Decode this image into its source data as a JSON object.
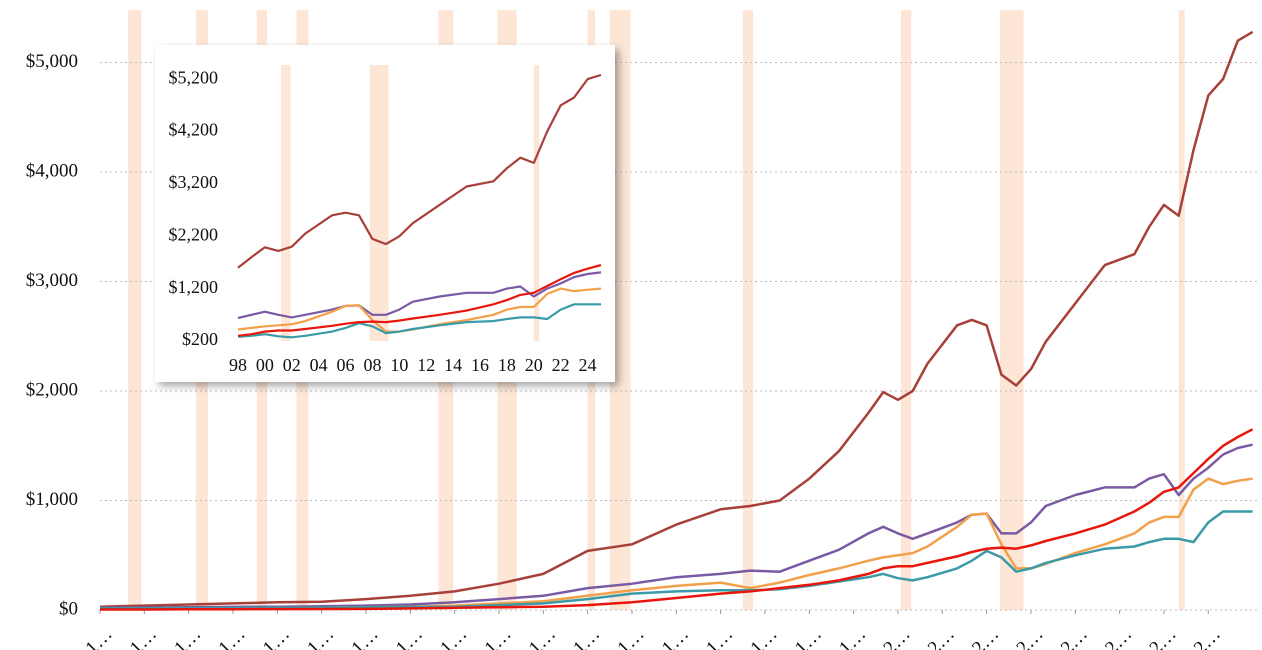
{
  "chart_data": [
    {
      "type": "line",
      "x": [
        1947,
        1950,
        1953,
        1956,
        1959,
        1962,
        1965,
        1968,
        1971,
        1974,
        1977,
        1980,
        1983,
        1986,
        1989,
        1991,
        1993,
        1995,
        1997,
        1999,
        2000,
        2001,
        2002,
        2003,
        2005,
        2006,
        2007,
        2008,
        2009,
        2010,
        2011,
        2013,
        2015,
        2017,
        2018,
        2019,
        2020,
        2021,
        2022,
        2023,
        2024,
        2025
      ],
      "series": [
        {
          "color": "#a8403a",
          "values": [
            30,
            40,
            50,
            60,
            70,
            75,
            100,
            130,
            170,
            240,
            330,
            540,
            600,
            780,
            920,
            950,
            1000,
            1200,
            1450,
            1800,
            1990,
            1920,
            2000,
            2250,
            2600,
            2650,
            2600,
            2150,
            2050,
            2200,
            2450,
            2800,
            3150,
            3250,
            3500,
            3700,
            3600,
            4200,
            4700,
            4850,
            5200,
            5280
          ]
        },
        {
          "color": "#7a5aa4",
          "values": [
            20,
            22,
            25,
            28,
            30,
            35,
            40,
            50,
            70,
            100,
            130,
            200,
            240,
            300,
            330,
            360,
            350,
            450,
            550,
            700,
            760,
            700,
            650,
            700,
            800,
            870,
            880,
            700,
            700,
            800,
            950,
            1050,
            1120,
            1120,
            1200,
            1240,
            1050,
            1200,
            1300,
            1420,
            1480,
            1510
          ]
        },
        {
          "color": "#f2a04a",
          "values": [
            10,
            10,
            12,
            14,
            16,
            20,
            25,
            30,
            40,
            60,
            80,
            130,
            180,
            220,
            250,
            200,
            250,
            320,
            380,
            450,
            480,
            500,
            520,
            580,
            760,
            870,
            880,
            600,
            380,
            380,
            420,
            520,
            600,
            700,
            800,
            850,
            850,
            1100,
            1200,
            1150,
            1180,
            1200
          ]
        },
        {
          "color": "#3a9aa8",
          "values": [
            15,
            15,
            16,
            18,
            20,
            22,
            25,
            28,
            30,
            45,
            60,
            100,
            150,
            170,
            180,
            180,
            190,
            220,
            260,
            300,
            330,
            290,
            270,
            300,
            380,
            450,
            540,
            480,
            350,
            380,
            430,
            500,
            560,
            580,
            620,
            650,
            650,
            620,
            800,
            900,
            900,
            900
          ]
        },
        {
          "color": "#e8160c",
          "values": [
            5,
            5,
            6,
            7,
            8,
            9,
            10,
            15,
            20,
            25,
            30,
            45,
            70,
            110,
            150,
            170,
            200,
            230,
            270,
            330,
            380,
            400,
            400,
            430,
            490,
            530,
            560,
            570,
            560,
            590,
            630,
            700,
            780,
            900,
            980,
            1080,
            1120,
            1250,
            1380,
            1500,
            1580,
            1650
          ]
        }
      ],
      "xlim": [
        1947,
        2025.5
      ],
      "xticks": [
        {
          "value": 1947,
          "label": "1…"
        },
        {
          "value": 1950,
          "label": "1…"
        },
        {
          "value": 1953,
          "label": "1…"
        },
        {
          "value": 1956,
          "label": "1…"
        },
        {
          "value": 1959,
          "label": "1…"
        },
        {
          "value": 1962,
          "label": "1…"
        },
        {
          "value": 1965,
          "label": "1…"
        },
        {
          "value": 1968,
          "label": "1…"
        },
        {
          "value": 1971,
          "label": "1…"
        },
        {
          "value": 1974,
          "label": "1…"
        },
        {
          "value": 1977,
          "label": "1…"
        },
        {
          "value": 1980,
          "label": "1…"
        },
        {
          "value": 1983,
          "label": "1…"
        },
        {
          "value": 1986,
          "label": "1…"
        },
        {
          "value": 1989,
          "label": "1…"
        },
        {
          "value": 1992,
          "label": "1…"
        },
        {
          "value": 1995,
          "label": "1…"
        },
        {
          "value": 1998,
          "label": "1…"
        },
        {
          "value": 2001,
          "label": "2…"
        },
        {
          "value": 2004,
          "label": "2…"
        },
        {
          "value": 2007,
          "label": "2…"
        },
        {
          "value": 2010,
          "label": "2…"
        },
        {
          "value": 2013,
          "label": "2…"
        },
        {
          "value": 2016,
          "label": "2…"
        },
        {
          "value": 2019,
          "label": "2…"
        },
        {
          "value": 2022,
          "label": "2…"
        }
      ],
      "ylim": [
        0,
        5480
      ],
      "yticks": [
        {
          "value": 0,
          "label": "$0"
        },
        {
          "value": 1000,
          "label": "$1,000"
        },
        {
          "value": 2000,
          "label": "$2,000"
        },
        {
          "value": 3000,
          "label": "$3,000"
        },
        {
          "value": 4000,
          "label": "$4,000"
        },
        {
          "value": 5000,
          "label": "$5,000"
        }
      ],
      "shaded_ranges": [
        [
          1948.9,
          1949.8
        ],
        [
          1953.5,
          1954.3
        ],
        [
          1957.6,
          1958.3
        ],
        [
          1960.3,
          1961.1
        ],
        [
          1969.9,
          1970.9
        ],
        [
          1973.9,
          1975.2
        ],
        [
          1980.0,
          1980.5
        ],
        [
          1981.5,
          1982.9
        ],
        [
          1990.5,
          1991.2
        ],
        [
          2001.2,
          2001.9
        ],
        [
          2007.9,
          2009.5
        ],
        [
          2020.0,
          2020.4
        ]
      ],
      "shade_color": "#fde6d6",
      "grid": true
    },
    {
      "type": "line",
      "x": [
        1998,
        1999,
        2000,
        2001,
        2002,
        2003,
        2005,
        2006,
        2007,
        2008,
        2009,
        2010,
        2011,
        2013,
        2015,
        2017,
        2018,
        2019,
        2020,
        2021,
        2022,
        2023,
        2024,
        2025
      ],
      "series": [
        {
          "color": "#a8403a",
          "values": [
            1600,
            1800,
            1990,
            1920,
            2000,
            2250,
            2600,
            2650,
            2600,
            2150,
            2050,
            2200,
            2450,
            2800,
            3150,
            3250,
            3500,
            3700,
            3600,
            4200,
            4700,
            4850,
            5200,
            5280
          ]
        },
        {
          "color": "#7a5aa4",
          "values": [
            640,
            700,
            760,
            700,
            650,
            700,
            800,
            870,
            880,
            700,
            700,
            800,
            950,
            1050,
            1120,
            1120,
            1200,
            1240,
            1050,
            1200,
            1300,
            1420,
            1480,
            1510
          ]
        },
        {
          "color": "#f2a04a",
          "values": [
            420,
            450,
            480,
            500,
            520,
            580,
            760,
            870,
            880,
            600,
            380,
            380,
            420,
            520,
            600,
            700,
            800,
            850,
            850,
            1100,
            1200,
            1150,
            1180,
            1200
          ]
        },
        {
          "color": "#3a9aa8",
          "values": [
            280,
            300,
            330,
            290,
            270,
            300,
            380,
            450,
            540,
            480,
            350,
            380,
            430,
            500,
            560,
            580,
            620,
            650,
            650,
            620,
            800,
            900,
            900,
            900
          ]
        },
        {
          "color": "#e8160c",
          "values": [
            300,
            330,
            380,
            400,
            400,
            430,
            490,
            530,
            560,
            570,
            560,
            590,
            630,
            700,
            780,
            900,
            980,
            1080,
            1120,
            1250,
            1380,
            1500,
            1580,
            1650
          ]
        }
      ],
      "xlim": [
        1998,
        2025
      ],
      "xticks": [
        {
          "value": 1998,
          "label": "98"
        },
        {
          "value": 2000,
          "label": "00"
        },
        {
          "value": 2002,
          "label": "02"
        },
        {
          "value": 2004,
          "label": "04"
        },
        {
          "value": 2006,
          "label": "06"
        },
        {
          "value": 2008,
          "label": "08"
        },
        {
          "value": 2010,
          "label": "10"
        },
        {
          "value": 2012,
          "label": "12"
        },
        {
          "value": 2014,
          "label": "14"
        },
        {
          "value": 2016,
          "label": "16"
        },
        {
          "value": 2018,
          "label": "18"
        },
        {
          "value": 2020,
          "label": "20"
        },
        {
          "value": 2022,
          "label": "22"
        },
        {
          "value": 2024,
          "label": "24"
        }
      ],
      "ylim": [
        200,
        5470
      ],
      "yticks": [
        {
          "value": 200,
          "label": "$200"
        },
        {
          "value": 1200,
          "label": "$1,200"
        },
        {
          "value": 2200,
          "label": "$2,200"
        },
        {
          "value": 3200,
          "label": "$3,200"
        },
        {
          "value": 4200,
          "label": "$4,200"
        },
        {
          "value": 5200,
          "label": "$5,200"
        }
      ],
      "shaded_ranges": [
        [
          2001.2,
          2001.9
        ],
        [
          2007.8,
          2009.2
        ],
        [
          2020.0,
          2020.4
        ]
      ],
      "shade_color": "#fde6d6",
      "grid": false
    }
  ]
}
